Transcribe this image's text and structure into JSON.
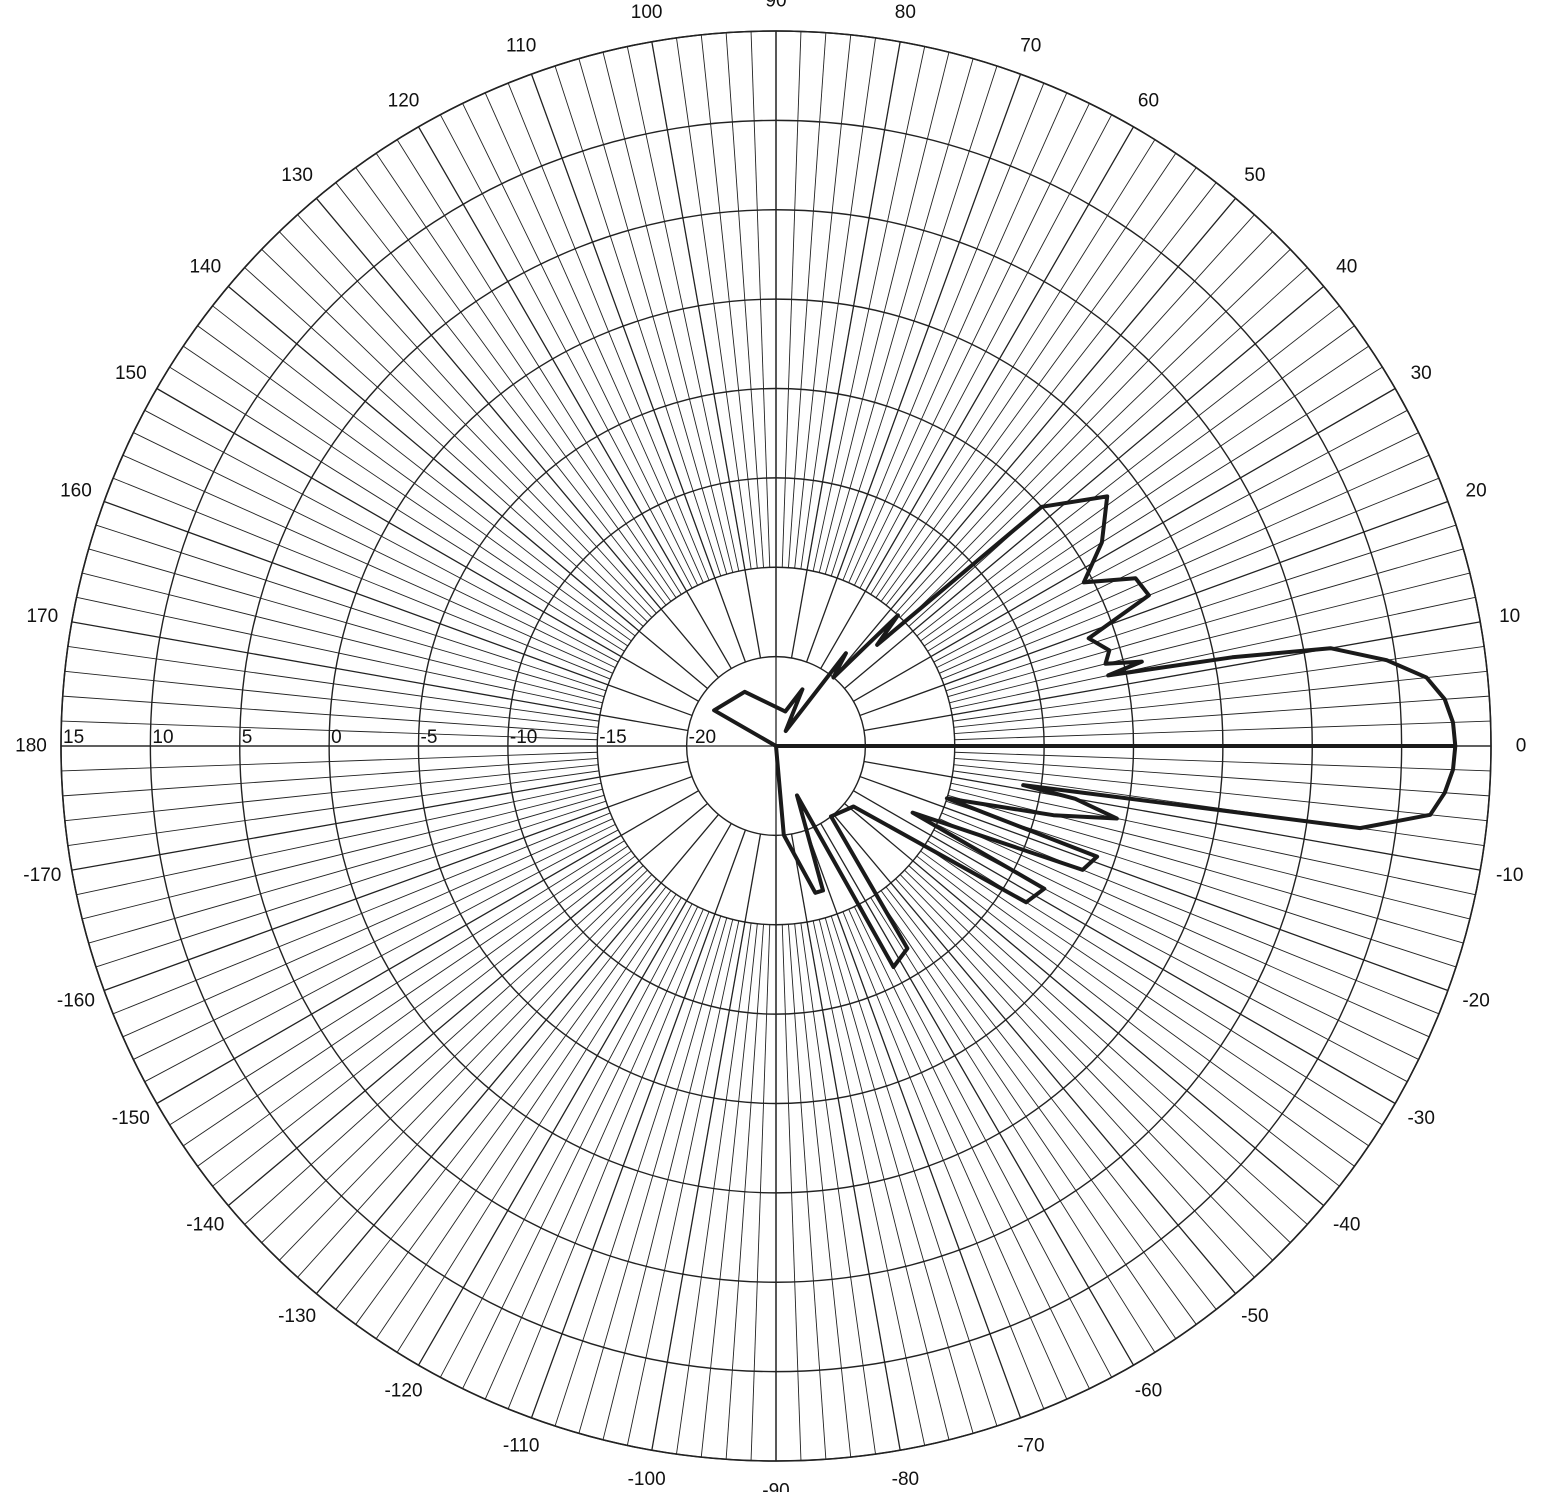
{
  "chart_data": {
    "type": "polar-line",
    "title": "",
    "angle_unit": "deg",
    "angle_range": [
      -180,
      180
    ],
    "angle_tick_step": 10,
    "angle_ticks": [
      "0",
      "10",
      "20",
      "30",
      "40",
      "50",
      "60",
      "70",
      "80",
      "90",
      "100",
      "110",
      "120",
      "130",
      "140",
      "150",
      "160",
      "170",
      "180",
      "-170",
      "-160",
      "-150",
      "-140",
      "-130",
      "-120",
      "-110",
      "-100",
      "-90",
      "-80",
      "-70",
      "-60",
      "-50",
      "-40",
      "-30",
      "-20",
      "-10"
    ],
    "radial_range": [
      -25,
      15
    ],
    "radial_ticks": [
      15,
      10,
      5,
      0,
      -5,
      -10,
      -15,
      -20
    ],
    "radial_tick_labels": [
      "15",
      "10",
      "5",
      "0",
      "-5",
      "-10",
      "-15",
      "-20"
    ],
    "grid": true,
    "minor_spoke_step_deg": 2,
    "line_color": "#1a1a1a",
    "series": [
      {
        "points": [
          {
            "angle": -180,
            "value": -25
          },
          {
            "angle": 0,
            "value": 13
          },
          {
            "angle": 2,
            "value": 12.9
          },
          {
            "angle": 4,
            "value": 12.5
          },
          {
            "angle": 6,
            "value": 11.6
          },
          {
            "angle": 8,
            "value": 9.5
          },
          {
            "angle": 10,
            "value": 6.5
          },
          {
            "angle": 11,
            "value": 1.0
          },
          {
            "angle": 12,
            "value": -6.0
          },
          {
            "angle": 13,
            "value": -4.0
          },
          {
            "angle": 14,
            "value": -6.0
          },
          {
            "angle": 16,
            "value": -5.6
          },
          {
            "angle": 19,
            "value": -6.5
          },
          {
            "angle": 22,
            "value": -2.5
          },
          {
            "angle": 25,
            "value": -2.8
          },
          {
            "angle": 28,
            "value": -5.5
          },
          {
            "angle": 32,
            "value": -3.5
          },
          {
            "angle": 37,
            "value": -1.8
          },
          {
            "angle": 42,
            "value": -5.0
          },
          {
            "angle": 45,
            "value": -17.0
          },
          {
            "angle": 47,
            "value": -15.0
          },
          {
            "angle": 50,
            "value": -20.0
          },
          {
            "angle": 53,
            "value": -18.5
          },
          {
            "angle": 57,
            "value": -24.0
          },
          {
            "angle": 65,
            "value": -21.5
          },
          {
            "angle": 75,
            "value": -23.0
          },
          {
            "angle": 120,
            "value": -21.5
          },
          {
            "angle": 150,
            "value": -21.0
          },
          {
            "angle": 170,
            "value": -25
          },
          {
            "angle": -95,
            "value": -25
          },
          {
            "angle": -85,
            "value": -20.0
          },
          {
            "angle": -75,
            "value": -16.5
          },
          {
            "angle": -72,
            "value": -16.5
          },
          {
            "angle": -67,
            "value": -22.0
          },
          {
            "angle": -62,
            "value": -11.0
          },
          {
            "angle": -57,
            "value": -11.5
          },
          {
            "angle": -52,
            "value": -20.0
          },
          {
            "angle": -38,
            "value": -19.5
          },
          {
            "angle": -32,
            "value": -8.5
          },
          {
            "angle": -28,
            "value": -8.0
          },
          {
            "angle": -26,
            "value": -16.5
          },
          {
            "angle": -22,
            "value": -6.5
          },
          {
            "angle": -19,
            "value": -6.0
          },
          {
            "angle": -17,
            "value": -15.0
          },
          {
            "angle": -14,
            "value": -9.0
          },
          {
            "angle": -12,
            "value": -5.5
          },
          {
            "angle": -10,
            "value": -8.0
          },
          {
            "angle": -9,
            "value": -11.0
          },
          {
            "angle": -8,
            "value": 8.0
          },
          {
            "angle": -6,
            "value": 11.8
          },
          {
            "angle": -4,
            "value": 12.5
          },
          {
            "angle": -2,
            "value": 12.9
          },
          {
            "angle": 0,
            "value": 13
          }
        ]
      }
    ]
  }
}
